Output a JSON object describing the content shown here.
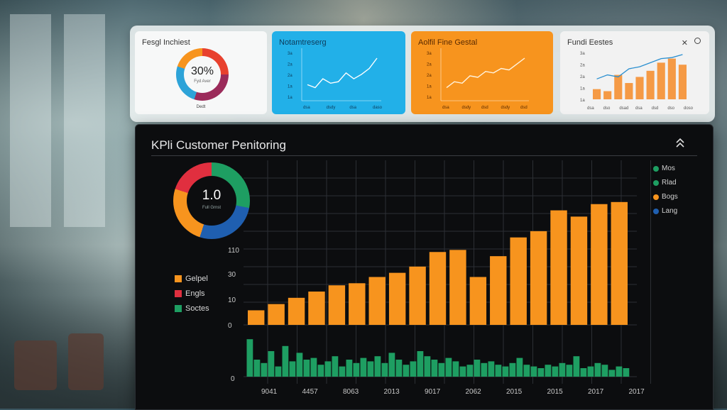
{
  "cards": {
    "card1": {
      "title": "Fesgl Inchiest",
      "donut_value": "30%",
      "donut_sub": "Fyd Aver",
      "foot": "Dedt"
    },
    "card2": {
      "title": "Notamtreserg",
      "x_ticks": [
        "dsa",
        "dsdy",
        "dsa",
        "daso"
      ],
      "y_ticks": [
        "3a",
        "2a",
        "2a",
        "1a",
        "1a"
      ],
      "line": [
        20,
        18,
        24,
        21,
        22,
        28,
        24,
        27,
        31,
        38
      ]
    },
    "card3": {
      "title": "Aolfil Fine Gestal",
      "x_ticks": [
        "dsa",
        "dsdy",
        "dsd",
        "dsdy",
        "dsd"
      ],
      "y_ticks": [
        "3a",
        "2a",
        "2a",
        "1a",
        "1a"
      ],
      "line": [
        14,
        18,
        17,
        22,
        21,
        25,
        24,
        27,
        26,
        30,
        34
      ]
    },
    "card4": {
      "title": "Fundi Eestes",
      "x_ticks": [
        "dsa",
        "dso",
        "dsad",
        "dsa",
        "dsd",
        "dso",
        "doso"
      ],
      "y_ticks": [
        "3a",
        "2a",
        "2a",
        "1a",
        "1a"
      ],
      "bars": [
        10,
        8,
        24,
        16,
        22,
        28,
        36,
        40,
        34
      ],
      "line": [
        20,
        24,
        22,
        30,
        32,
        36,
        40,
        41,
        44
      ]
    }
  },
  "main": {
    "title": "KPli Customer Penitoring",
    "donut_value": "1.0",
    "donut_sub": "Full Grnst",
    "legend_left": [
      {
        "label": "Gelpel",
        "color": "#f7941e"
      },
      {
        "label": "Engls",
        "color": "#e02f3f"
      },
      {
        "label": "Soctes",
        "color": "#1e9e62"
      }
    ],
    "legend_right": [
      {
        "label": "Mos",
        "color": "#1e9e62"
      },
      {
        "label": "Rlad",
        "color": "#1e9e62"
      },
      {
        "label": "Bogs",
        "color": "#f7941e"
      },
      {
        "label": "Lang",
        "color": "#1f5fb0"
      }
    ]
  },
  "chart_data": {
    "type": "bar",
    "y_ticks": [
      "0",
      "10",
      "30",
      "110"
    ],
    "x_tick_labels": [
      "9041",
      "4457",
      "8063",
      "2013",
      "9017",
      "2062",
      "2015",
      "2015",
      "2017",
      "2017"
    ],
    "bars_top": [
      7,
      10,
      13,
      16,
      19,
      20,
      23,
      25,
      28,
      35,
      36,
      23,
      33,
      42,
      45,
      55,
      52,
      58,
      59
    ],
    "bars_bottom": [
      22,
      10,
      8,
      15,
      6,
      18,
      9,
      14,
      10,
      11,
      7,
      9,
      12,
      6,
      10,
      8,
      11,
      9,
      12,
      8,
      14,
      10,
      7,
      9,
      15,
      12,
      10,
      8,
      11,
      9,
      6,
      7,
      10,
      8,
      9,
      7,
      6,
      8,
      11,
      7,
      6,
      5,
      7,
      6,
      8,
      7,
      12,
      5,
      6,
      8,
      7,
      4,
      6,
      5
    ]
  },
  "colors": {
    "orange": "#f7941e",
    "green": "#1e9e62",
    "blue": "#22b0e8",
    "red": "#e02f3f",
    "panel": "#0c0d0f"
  }
}
